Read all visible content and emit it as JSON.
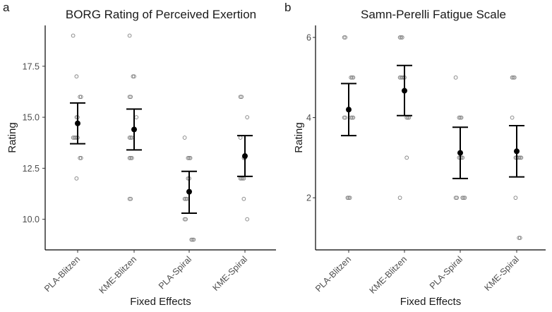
{
  "chart_data": [
    {
      "panel_label": "a",
      "type": "scatter",
      "title": "BORG Rating of Perceived Exertion",
      "xlabel": "Fixed Effects",
      "ylabel": "Rating",
      "ylim": [
        8.5,
        19.5
      ],
      "yticks": [
        10.0,
        12.5,
        15.0,
        17.5
      ],
      "ytick_labels": [
        "10.0",
        "12.5",
        "15.0",
        "17.5"
      ],
      "categories": [
        "PLA-Blitzen",
        "KME-Blitzen",
        "PLA-Spiral",
        "KME-Spiral"
      ],
      "groups": [
        {
          "points": [
            19,
            17,
            16,
            16,
            15,
            15,
            14,
            14,
            14,
            14,
            14,
            13,
            13,
            12
          ],
          "mean": 14.7,
          "lower": 13.7,
          "upper": 15.7
        },
        {
          "points": [
            19,
            17,
            17,
            16,
            16,
            15,
            14,
            14,
            14,
            13,
            13,
            13,
            11,
            11
          ],
          "mean": 14.4,
          "lower": 13.4,
          "upper": 15.4
        },
        {
          "points": [
            14,
            13,
            13,
            13,
            12,
            12,
            11,
            11,
            11,
            10,
            10,
            9,
            9,
            9
          ],
          "mean": 11.35,
          "lower": 10.3,
          "upper": 12.35
        },
        {
          "points": [
            16,
            16,
            15,
            14,
            13,
            13,
            12,
            12,
            12,
            12,
            11,
            10
          ],
          "mean": 13.1,
          "lower": 12.1,
          "upper": 14.1
        }
      ]
    },
    {
      "panel_label": "b",
      "type": "scatter",
      "title": "Samn-Perelli Fatigue Scale",
      "xlabel": "Fixed Effects",
      "ylabel": "Rating",
      "ylim": [
        0.7,
        6.3
      ],
      "yticks": [
        2,
        4,
        6
      ],
      "ytick_labels": [
        "2",
        "4",
        "6"
      ],
      "categories": [
        "PLA-Blitzen",
        "KME-Blitzen",
        "PLA-Spiral",
        "KME-Spiral"
      ],
      "groups": [
        {
          "points": [
            6,
            6,
            5,
            5,
            5,
            4,
            4,
            4,
            4,
            4,
            2,
            2,
            2
          ],
          "mean": 4.2,
          "lower": 3.55,
          "upper": 4.85
        },
        {
          "points": [
            6,
            6,
            6,
            5,
            5,
            5,
            5,
            5,
            4,
            4,
            4,
            3,
            2
          ],
          "mean": 4.67,
          "lower": 4.05,
          "upper": 5.3
        },
        {
          "points": [
            5,
            4,
            4,
            4,
            3,
            3,
            3,
            3,
            2,
            2,
            2,
            2,
            2
          ],
          "mean": 3.12,
          "lower": 2.48,
          "upper": 3.76
        },
        {
          "points": [
            5,
            5,
            5,
            4,
            3,
            3,
            3,
            3,
            3,
            3,
            2,
            1,
            1
          ],
          "mean": 3.16,
          "lower": 2.52,
          "upper": 3.8
        }
      ]
    }
  ]
}
